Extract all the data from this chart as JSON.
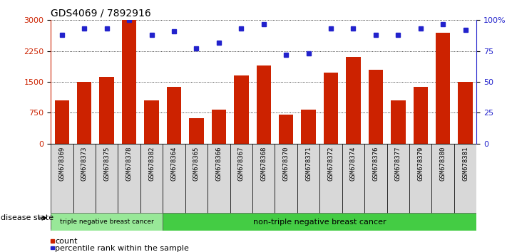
{
  "title": "GDS4069 / 7892916",
  "samples": [
    "GSM678369",
    "GSM678373",
    "GSM678375",
    "GSM678378",
    "GSM678382",
    "GSM678364",
    "GSM678365",
    "GSM678366",
    "GSM678367",
    "GSM678368",
    "GSM678370",
    "GSM678371",
    "GSM678372",
    "GSM678374",
    "GSM678376",
    "GSM678377",
    "GSM678379",
    "GSM678380",
    "GSM678381"
  ],
  "counts": [
    1050,
    1500,
    1620,
    3000,
    1050,
    1380,
    620,
    820,
    1650,
    1900,
    700,
    820,
    1720,
    2100,
    1800,
    1050,
    1380,
    2700,
    1500
  ],
  "percentiles": [
    88,
    93,
    93,
    100,
    88,
    91,
    77,
    82,
    93,
    97,
    72,
    73,
    93,
    93,
    88,
    88,
    93,
    97,
    92
  ],
  "ylim_left": [
    0,
    3000
  ],
  "ylim_right": [
    0,
    100
  ],
  "yticks_left": [
    0,
    750,
    1500,
    2250,
    3000
  ],
  "yticks_right": [
    0,
    25,
    50,
    75,
    100
  ],
  "bar_color": "#cc2200",
  "dot_color": "#2222cc",
  "bg_color": "#ffffff",
  "cell_color": "#d8d8d8",
  "triple_neg_count": 5,
  "group1_label": "triple negative breast cancer",
  "group2_label": "non-triple negative breast cancer",
  "group1_color": "#98e898",
  "group2_color": "#44cc44",
  "legend_count_label": "count",
  "legend_pct_label": "percentile rank within the sample",
  "disease_state_label": "disease state"
}
